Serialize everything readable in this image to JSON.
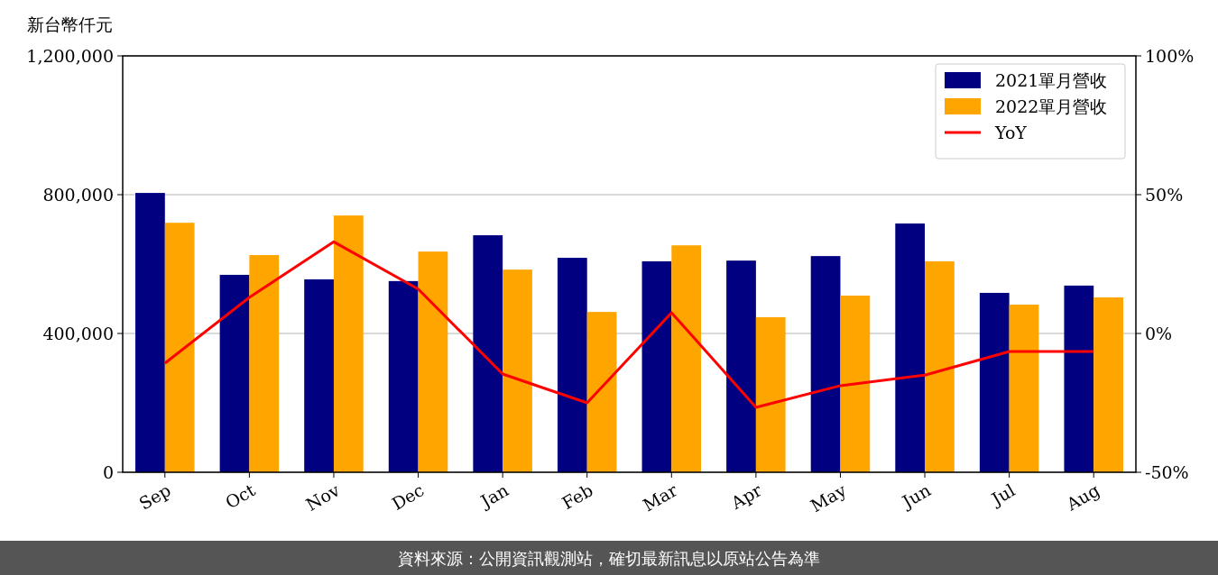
{
  "chart_data": {
    "type": "bar",
    "ylabel": "新台幣仟元",
    "categories": [
      "Sep",
      "Oct",
      "Nov",
      "Dec",
      "Jan",
      "Feb",
      "Mar",
      "Apr",
      "May",
      "Jun",
      "Jul",
      "Aug"
    ],
    "series": [
      {
        "name": "2021單月營收",
        "color": "#000080",
        "values": [
          805000,
          569000,
          556000,
          551000,
          683000,
          618000,
          608000,
          610000,
          623000,
          717000,
          517000,
          538000
        ]
      },
      {
        "name": "2022單月營收",
        "color": "#ffa500",
        "values": [
          719000,
          626000,
          740000,
          636000,
          584000,
          462000,
          654000,
          447000,
          509000,
          608000,
          483000,
          504000
        ]
      },
      {
        "name": "YoY",
        "type": "line",
        "axis": "y2",
        "color": "#ff0000",
        "values": [
          -10.7,
          13,
          33,
          16,
          -14.6,
          -25,
          7.5,
          -26.6,
          -18.8,
          -15,
          -6.5,
          -6.5
        ]
      }
    ],
    "ylim": [
      0,
      1200000
    ],
    "yticks": [
      {
        "value": 0,
        "label": "0"
      },
      {
        "value": 400000,
        "label": "400,000"
      },
      {
        "value": 800000,
        "label": "800,000"
      },
      {
        "value": 1200000,
        "label": "1,200,000"
      }
    ],
    "y2lim": [
      -50,
      100
    ],
    "y2ticks": [
      {
        "value": -50,
        "label": "-50%"
      },
      {
        "value": 0,
        "label": "0%"
      },
      {
        "value": 50,
        "label": "50%"
      },
      {
        "value": 100,
        "label": "100%"
      }
    ],
    "grid": "y",
    "legend": "top right",
    "marker": "none",
    "line_style": "solid",
    "annotations": [
      "資料來源：公開資訊觀測站，確切最新訊息以原站公告為準"
    ]
  }
}
